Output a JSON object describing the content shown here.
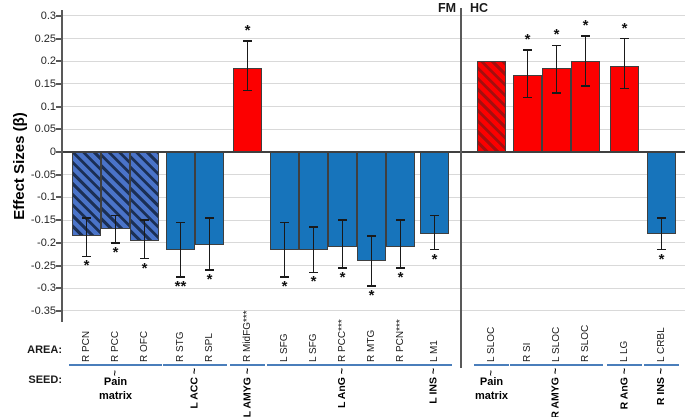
{
  "labels": {
    "y_axis_title": "Effect Sizes (β)",
    "panel_fm": "FM",
    "panel_hc": "HC",
    "area_row": "AREA:",
    "seed_row": "SEED:"
  },
  "colors": {
    "bar_blue": "#1774BB",
    "bar_red": "#FC0000",
    "hatch_blue_base": "#4A73C8",
    "hatch_blue_stripe": "#1B2F55",
    "hatch_red_base": "#FC0000",
    "hatch_red_stripe": "#A50E0E",
    "bar_border": "#3F3F3F",
    "gridline": "#D9D9D9",
    "axis": "#595959",
    "seed_underline": "#4A7EBB"
  },
  "chart_data": {
    "type": "bar",
    "ylabel": "Effect Sizes (β)",
    "ylim": [
      -0.35,
      0.3
    ],
    "ytick_labels": [
      "0.3",
      "0.25",
      "0.2",
      "0.15",
      "0.1",
      "0.05",
      "0",
      "-0.05",
      "-0.1",
      "-0.15",
      "-0.2",
      "-0.25",
      "-0.3",
      "-0.35"
    ],
    "grid": true,
    "panels": [
      "FM",
      "HC"
    ],
    "pain_matrix_tilde": "~",
    "groups": [
      {
        "panel": "FM",
        "seed": "Pain matrix",
        "seed_rotated": false,
        "bars": [
          {
            "area": "R PCN",
            "value": -0.185,
            "err": [
              -0.23,
              -0.145
            ],
            "sig": "*",
            "style": "hatched-blue"
          },
          {
            "area": "R PCC",
            "value": -0.17,
            "err": [
              -0.2,
              -0.14
            ],
            "sig": "*",
            "style": "hatched-blue"
          },
          {
            "area": "R OFC",
            "value": -0.195,
            "err": [
              -0.235,
              -0.15
            ],
            "sig": "*",
            "style": "hatched-blue"
          }
        ]
      },
      {
        "panel": "FM",
        "seed": "L ACC ~",
        "seed_rotated": true,
        "bars": [
          {
            "area": "R STG",
            "value": -0.215,
            "err": [
              -0.275,
              -0.155
            ],
            "sig": "**",
            "style": "blue"
          },
          {
            "area": "R SPL",
            "value": -0.205,
            "err": [
              -0.26,
              -0.145
            ],
            "sig": "*",
            "style": "blue"
          }
        ]
      },
      {
        "panel": "FM",
        "seed": "L AMYG ~",
        "seed_rotated": true,
        "bars": [
          {
            "area": "R MidFG***",
            "value": 0.185,
            "err": [
              0.135,
              0.245
            ],
            "sig": "*",
            "style": "red"
          }
        ]
      },
      {
        "panel": "FM",
        "seed": "L AnG ~",
        "seed_rotated": true,
        "bars": [
          {
            "area": "L SFG",
            "value": -0.215,
            "err": [
              -0.275,
              -0.155
            ],
            "sig": "*",
            "style": "blue"
          },
          {
            "area": "L SFG",
            "value": -0.215,
            "err": [
              -0.265,
              -0.165
            ],
            "sig": "*",
            "style": "blue"
          },
          {
            "area": "R PCC***",
            "value": -0.21,
            "err": [
              -0.255,
              -0.15
            ],
            "sig": "*",
            "style": "blue"
          },
          {
            "area": "R MTG",
            "value": -0.24,
            "err": [
              -0.295,
              -0.185
            ],
            "sig": "*",
            "style": "blue"
          },
          {
            "area": "R PCN***",
            "value": -0.21,
            "err": [
              -0.255,
              -0.15
            ],
            "sig": "*",
            "style": "blue"
          }
        ]
      },
      {
        "panel": "FM",
        "seed": "L INS ~",
        "seed_rotated": true,
        "bars": [
          {
            "area": "L M1",
            "value": -0.18,
            "err": [
              -0.215,
              -0.14
            ],
            "sig": "*",
            "style": "blue"
          }
        ]
      },
      {
        "panel": "HC",
        "seed": "Pain matrix",
        "seed_rotated": false,
        "bars": [
          {
            "area": "L SLOC",
            "value": 0.2,
            "err": null,
            "sig": "",
            "style": "hatched-red"
          }
        ]
      },
      {
        "panel": "HC",
        "seed": "R AMYG ~",
        "seed_rotated": true,
        "bars": [
          {
            "area": "R SI",
            "value": 0.17,
            "err": [
              0.12,
              0.225
            ],
            "sig": "*",
            "style": "red"
          },
          {
            "area": "L SLOC",
            "value": 0.185,
            "err": [
              0.13,
              0.235
            ],
            "sig": "*",
            "style": "red"
          },
          {
            "area": "R SLOC",
            "value": 0.2,
            "err": [
              0.145,
              0.255
            ],
            "sig": "*",
            "style": "red"
          }
        ]
      },
      {
        "panel": "HC",
        "seed": "R AnG ~",
        "seed_rotated": true,
        "bars": [
          {
            "area": "L LG",
            "value": 0.19,
            "err": [
              0.14,
              0.25
            ],
            "sig": "*",
            "style": "red"
          }
        ]
      },
      {
        "panel": "HC",
        "seed": "R INS ~",
        "seed_rotated": true,
        "bars": [
          {
            "area": "L CRBL",
            "value": -0.18,
            "err": [
              -0.215,
              -0.145
            ],
            "sig": "*",
            "style": "blue"
          }
        ]
      }
    ]
  }
}
